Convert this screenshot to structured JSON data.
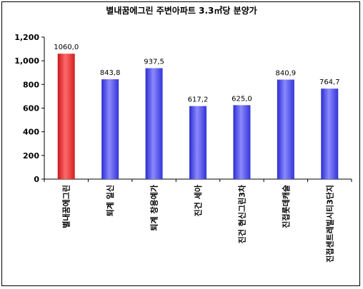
{
  "chart_data": {
    "type": "bar",
    "title": "별내꿈에그린 주변아파트 3.3㎡당 분양가",
    "categories": [
      "별내꿈에그린",
      "퇴계 일신",
      "퇴계 창용예가",
      "진건 세아",
      "진건 현신그린3차",
      "진접롯데캐슬",
      "진접센트레빌시티3단지"
    ],
    "values": [
      1060.0,
      843.8,
      937.5,
      617.2,
      625.0,
      840.9,
      764.7
    ],
    "data_labels": [
      "1060,0",
      "843,8",
      "937,5",
      "617,2",
      "625,0",
      "840,9",
      "764,7"
    ],
    "yticks": [
      "0",
      "200",
      "400",
      "600",
      "800",
      "1,000",
      "1,200"
    ],
    "ylim": [
      0,
      1200
    ],
    "xlabel": "",
    "ylabel": "",
    "grid": false,
    "colors": {
      "highlight_top": "#ff4040",
      "highlight_mid": "#ff6a6a",
      "series_top": "#4848e8",
      "series_mid": "#8080ff",
      "highlight_index": 0
    }
  }
}
